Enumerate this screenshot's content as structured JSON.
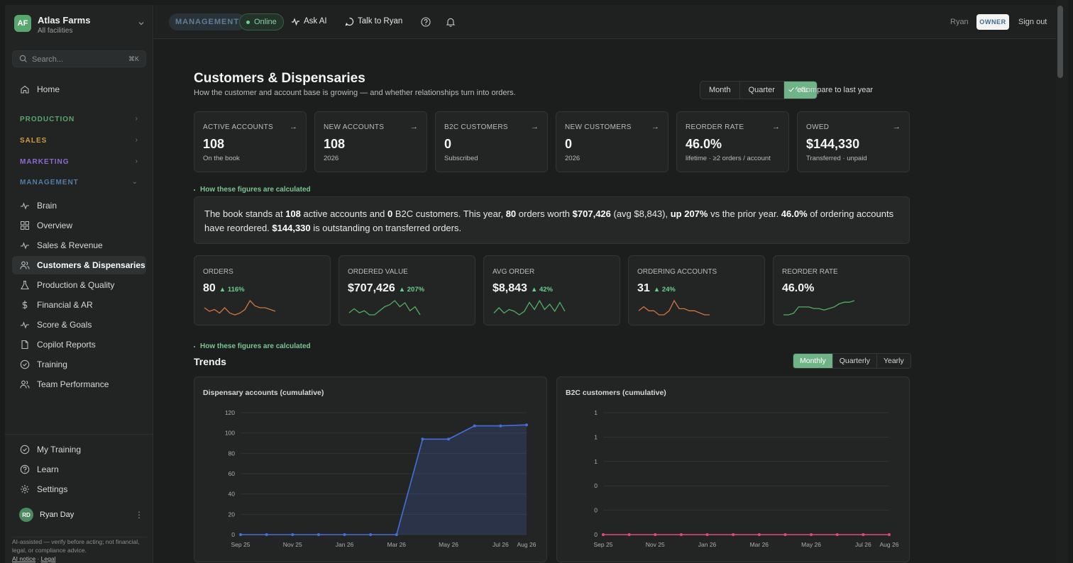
{
  "org": {
    "initials": "AF",
    "name": "Atlas Farms",
    "subtitle": "All facilities"
  },
  "search": {
    "placeholder": "Search...",
    "shortcut": "⌘K"
  },
  "sidebar": {
    "home": "Home",
    "sections": [
      {
        "label": "PRODUCTION",
        "color": "#5aa66f"
      },
      {
        "label": "SALES",
        "color": "#d39b3c"
      },
      {
        "label": "MARKETING",
        "color": "#8f6ad1"
      },
      {
        "label": "MANAGEMENT",
        "color": "#4f7fa6"
      }
    ],
    "items": [
      {
        "label": "Brain",
        "icon": "pulse-icon"
      },
      {
        "label": "Overview",
        "icon": "dashboard-icon"
      },
      {
        "label": "Sales & Revenue",
        "icon": "pulse-icon"
      },
      {
        "label": "Customers & Dispensaries",
        "icon": "users-icon"
      },
      {
        "label": "Production & Quality",
        "icon": "flask-icon"
      },
      {
        "label": "Financial & AR",
        "icon": "dollar-icon"
      },
      {
        "label": "Score & Goals",
        "icon": "pulse-icon"
      },
      {
        "label": "Copilot Reports",
        "icon": "file-icon"
      },
      {
        "label": "Training",
        "icon": "check-circle-icon"
      },
      {
        "label": "Team Performance",
        "icon": "users-icon"
      }
    ],
    "bottom": [
      {
        "label": "My Training",
        "icon": "check-circle-icon"
      },
      {
        "label": "Learn",
        "icon": "help-circle-icon"
      },
      {
        "label": "Settings",
        "icon": "gear-icon"
      }
    ],
    "user": {
      "initials": "RD",
      "name": "Ryan Day"
    },
    "disclaimer": "AI-assisted — verify before acting; not financial, legal, or compliance advice.",
    "ai_notice": "AI notice",
    "sep": "·",
    "legal": "Legal"
  },
  "topbar": {
    "badge": "MANAGEMENT",
    "status": "Online",
    "ask_ai": "Ask AI",
    "talk": "Talk to Ryan",
    "user": "Ryan",
    "role": "OWNER",
    "signout": "Sign out"
  },
  "page": {
    "title": "Customers & Dispensaries",
    "subtitle": "How the customer and account base is growing — and whether relationships turn into orders.",
    "periods": [
      "Month",
      "Quarter",
      "Year"
    ],
    "active_period": "Year",
    "compare_label": "Compare to last year",
    "compare_checked": true
  },
  "kpis": [
    {
      "label": "ACTIVE ACCOUNTS",
      "value": "108",
      "sub": "On the book"
    },
    {
      "label": "NEW ACCOUNTS",
      "value": "108",
      "sub": "2026"
    },
    {
      "label": "B2C CUSTOMERS",
      "value": "0",
      "sub": "Subscribed"
    },
    {
      "label": "NEW CUSTOMERS",
      "value": "0",
      "sub": "2026"
    },
    {
      "label": "REORDER RATE",
      "value": "46.0%",
      "sub": "lifetime · ≥2 orders / account"
    },
    {
      "label": "OWED",
      "value": "$144,330",
      "sub": "Transferred · unpaid"
    }
  ],
  "calc_label": "How these figures are calculated",
  "summary": {
    "p1": "The book stands at ",
    "active": "108",
    "p2": " active accounts and ",
    "b2c": "0",
    "p3": " B2C customers. This year, ",
    "orders": "80",
    "p4": " orders worth ",
    "worth": "$707,426",
    "p5": " (avg $8,843), ",
    "up": "up 207%",
    "p6": " vs the prior year. ",
    "reorder": "46.0%",
    "p7": " of ordering accounts have reordered. ",
    "owed": "$144,330",
    "p8": " is outstanding on transferred orders."
  },
  "metrics": [
    {
      "label": "ORDERS",
      "value": "80",
      "delta": "▲ 116%",
      "color": "#d0743c",
      "spark": [
        5,
        3,
        4,
        2,
        5,
        2,
        1,
        2,
        4,
        9,
        6,
        5,
        5,
        4,
        3
      ]
    },
    {
      "label": "ORDERED VALUE",
      "value": "$707,426",
      "delta": "▲ 207%",
      "color": "#4fae63",
      "spark": [
        2,
        4,
        2,
        3,
        1,
        1,
        3,
        5,
        6,
        8,
        5,
        7,
        3,
        5,
        1
      ]
    },
    {
      "label": "AVG ORDER",
      "value": "$8,843",
      "delta": "▲ 42%",
      "color": "#4fae63",
      "spark": [
        2,
        5,
        2,
        4,
        3,
        1,
        3,
        8,
        4,
        9,
        4,
        7,
        3,
        8,
        3
      ]
    },
    {
      "label": "ORDERING ACCOUNTS",
      "value": "31",
      "delta": "▲ 24%",
      "color": "#d0743c",
      "spark": [
        4,
        6,
        4,
        4,
        2,
        2,
        4,
        9,
        5,
        5,
        4,
        4,
        3,
        2,
        2
      ]
    },
    {
      "label": "REORDER RATE",
      "value": "46.0%",
      "delta": "",
      "color": "#4fae63",
      "spark": [
        1,
        1,
        2,
        6,
        6,
        6,
        5,
        5,
        4,
        5,
        6,
        8,
        9,
        9,
        10
      ]
    }
  ],
  "trends": {
    "title": "Trends",
    "grains": [
      "Monthly",
      "Quarterly",
      "Yearly"
    ],
    "active": "Monthly"
  },
  "chart_data": [
    {
      "type": "area",
      "title": "Dispensary accounts (cumulative)",
      "color": "#4470d9",
      "x": [
        "Sep 25",
        "Oct 25",
        "Nov 25",
        "Dec 25",
        "Jan 26",
        "Feb 26",
        "Mar 26",
        "Apr 26",
        "May 26",
        "Jun 26",
        "Jul 26",
        "Aug 26"
      ],
      "xticks": [
        "Sep 25",
        "Nov 25",
        "Jan 26",
        "Mar 26",
        "May 26",
        "Jul 26",
        "Aug 26"
      ],
      "values": [
        0,
        0,
        0,
        0,
        0,
        0,
        0,
        94,
        94,
        107,
        107,
        108
      ],
      "ylim": [
        0,
        120
      ],
      "yticks": [
        "0",
        "20",
        "40",
        "60",
        "80",
        "100",
        "120"
      ],
      "grid": true
    },
    {
      "type": "line",
      "title": "B2C customers (cumulative)",
      "color": "#e04a7a",
      "x": [
        "Sep 25",
        "Oct 25",
        "Nov 25",
        "Dec 25",
        "Jan 26",
        "Feb 26",
        "Mar 26",
        "Apr 26",
        "May 26",
        "Jun 26",
        "Jul 26",
        "Aug 26"
      ],
      "xticks": [
        "Sep 25",
        "Nov 25",
        "Jan 26",
        "Mar 26",
        "May 26",
        "Jul 26",
        "Aug 26"
      ],
      "values": [
        0,
        0,
        0,
        0,
        0,
        0,
        0,
        0,
        0,
        0,
        0,
        0
      ],
      "ylim": [
        0,
        1
      ],
      "yticks": [
        "0",
        "0",
        "0",
        "1",
        "1",
        "1"
      ],
      "grid": true
    }
  ]
}
